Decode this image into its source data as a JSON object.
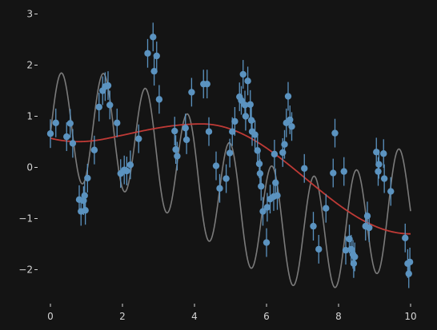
{
  "chart_data": {
    "type": "scatter",
    "title": "",
    "xlabel": "",
    "ylabel": "",
    "xlim": [
      -0.5,
      10.3
    ],
    "ylim": [
      -2.65,
      3.2
    ],
    "x_ticks": [
      0,
      2,
      4,
      6,
      8,
      10
    ],
    "y_ticks": [
      -2,
      -1,
      0,
      1,
      2,
      3
    ],
    "grid": false,
    "legend": "none",
    "colors": {
      "background": "#141414",
      "points": "#5b93c0",
      "true_curve": "#7b7b7b",
      "fit_curve": "#bf3a36",
      "ticks": "#d4d4d4"
    },
    "points": [
      {
        "x": 0.0,
        "y": 0.66,
        "err": 0.28
      },
      {
        "x": 0.15,
        "y": 0.87,
        "err": 0.28
      },
      {
        "x": 0.45,
        "y": 0.6,
        "err": 0.28
      },
      {
        "x": 0.55,
        "y": 0.86,
        "err": 0.28
      },
      {
        "x": 0.62,
        "y": 0.47,
        "err": 0.28
      },
      {
        "x": 0.8,
        "y": -0.63,
        "err": 0.28
      },
      {
        "x": 0.85,
        "y": -0.86,
        "err": 0.28
      },
      {
        "x": 0.92,
        "y": -0.65,
        "err": 0.28
      },
      {
        "x": 0.95,
        "y": -0.55,
        "err": 0.28
      },
      {
        "x": 0.97,
        "y": -0.84,
        "err": 0.28
      },
      {
        "x": 1.03,
        "y": -0.21,
        "err": 0.28
      },
      {
        "x": 1.22,
        "y": 0.34,
        "err": 0.28
      },
      {
        "x": 1.35,
        "y": 1.18,
        "err": 0.28
      },
      {
        "x": 1.45,
        "y": 1.5,
        "err": 0.28
      },
      {
        "x": 1.52,
        "y": 1.58,
        "err": 0.28
      },
      {
        "x": 1.6,
        "y": 1.6,
        "err": 0.28
      },
      {
        "x": 1.65,
        "y": 1.22,
        "err": 0.28
      },
      {
        "x": 1.85,
        "y": 0.87,
        "err": 0.28
      },
      {
        "x": 1.95,
        "y": -0.12,
        "err": 0.28
      },
      {
        "x": 2.05,
        "y": -0.05,
        "err": 0.28
      },
      {
        "x": 2.12,
        "y": -0.07,
        "err": 0.28
      },
      {
        "x": 2.22,
        "y": 0.05,
        "err": 0.28
      },
      {
        "x": 2.45,
        "y": 0.56,
        "err": 0.28
      },
      {
        "x": 2.7,
        "y": 2.23,
        "err": 0.28
      },
      {
        "x": 2.85,
        "y": 2.55,
        "err": 0.28
      },
      {
        "x": 2.88,
        "y": 1.88,
        "err": 0.28
      },
      {
        "x": 2.95,
        "y": 2.18,
        "err": 0.28
      },
      {
        "x": 3.02,
        "y": 1.33,
        "err": 0.28
      },
      {
        "x": 3.45,
        "y": 0.71,
        "err": 0.28
      },
      {
        "x": 3.48,
        "y": 0.35,
        "err": 0.28
      },
      {
        "x": 3.52,
        "y": 0.22,
        "err": 0.28
      },
      {
        "x": 3.75,
        "y": 0.77,
        "err": 0.28
      },
      {
        "x": 3.78,
        "y": 0.54,
        "err": 0.28
      },
      {
        "x": 3.92,
        "y": 1.47,
        "err": 0.28
      },
      {
        "x": 4.25,
        "y": 1.63,
        "err": 0.28
      },
      {
        "x": 4.35,
        "y": 1.63,
        "err": 0.28
      },
      {
        "x": 4.4,
        "y": 0.7,
        "err": 0.28
      },
      {
        "x": 4.6,
        "y": 0.03,
        "err": 0.28
      },
      {
        "x": 4.7,
        "y": -0.41,
        "err": 0.28
      },
      {
        "x": 4.88,
        "y": -0.22,
        "err": 0.28
      },
      {
        "x": 4.98,
        "y": 0.28,
        "err": 0.28
      },
      {
        "x": 5.05,
        "y": 0.7,
        "err": 0.28
      },
      {
        "x": 5.12,
        "y": 0.9,
        "err": 0.28
      },
      {
        "x": 5.25,
        "y": 1.38,
        "err": 0.28
      },
      {
        "x": 5.3,
        "y": 1.31,
        "err": 0.28
      },
      {
        "x": 5.35,
        "y": 1.82,
        "err": 0.28
      },
      {
        "x": 5.4,
        "y": 1.22,
        "err": 0.28
      },
      {
        "x": 5.42,
        "y": 1.0,
        "err": 0.28
      },
      {
        "x": 5.48,
        "y": 1.69,
        "err": 0.28
      },
      {
        "x": 5.55,
        "y": 1.23,
        "err": 0.28
      },
      {
        "x": 5.58,
        "y": 0.92,
        "err": 0.28
      },
      {
        "x": 5.6,
        "y": 0.7,
        "err": 0.28
      },
      {
        "x": 5.68,
        "y": 0.64,
        "err": 0.28
      },
      {
        "x": 5.75,
        "y": 0.33,
        "err": 0.28
      },
      {
        "x": 5.8,
        "y": 0.07,
        "err": 0.28
      },
      {
        "x": 5.82,
        "y": -0.12,
        "err": 0.28
      },
      {
        "x": 5.85,
        "y": -0.37,
        "err": 0.28
      },
      {
        "x": 5.9,
        "y": -0.86,
        "err": 0.28
      },
      {
        "x": 6.0,
        "y": -1.47,
        "err": 0.28
      },
      {
        "x": 6.02,
        "y": -0.78,
        "err": 0.28
      },
      {
        "x": 6.1,
        "y": -0.62,
        "err": 0.28
      },
      {
        "x": 6.2,
        "y": -0.57,
        "err": 0.28
      },
      {
        "x": 6.22,
        "y": 0.26,
        "err": 0.28
      },
      {
        "x": 6.25,
        "y": -0.3,
        "err": 0.28
      },
      {
        "x": 6.3,
        "y": -0.55,
        "err": 0.28
      },
      {
        "x": 6.45,
        "y": 0.29,
        "err": 0.28
      },
      {
        "x": 6.5,
        "y": 0.45,
        "err": 0.28
      },
      {
        "x": 6.55,
        "y": 0.87,
        "err": 0.28
      },
      {
        "x": 6.6,
        "y": 1.39,
        "err": 0.28
      },
      {
        "x": 6.65,
        "y": 0.93,
        "err": 0.28
      },
      {
        "x": 6.7,
        "y": 0.8,
        "err": 0.28
      },
      {
        "x": 7.05,
        "y": -0.02,
        "err": 0.28
      },
      {
        "x": 7.3,
        "y": -1.15,
        "err": 0.28
      },
      {
        "x": 7.45,
        "y": -1.6,
        "err": 0.28
      },
      {
        "x": 7.65,
        "y": -0.8,
        "err": 0.28
      },
      {
        "x": 7.85,
        "y": -0.11,
        "err": 0.28
      },
      {
        "x": 7.9,
        "y": 0.67,
        "err": 0.28
      },
      {
        "x": 8.15,
        "y": -0.08,
        "err": 0.28
      },
      {
        "x": 8.2,
        "y": -1.62,
        "err": 0.28
      },
      {
        "x": 8.3,
        "y": -1.4,
        "err": 0.28
      },
      {
        "x": 8.35,
        "y": -1.6,
        "err": 0.28
      },
      {
        "x": 8.4,
        "y": -1.7,
        "err": 0.28
      },
      {
        "x": 8.42,
        "y": -1.88,
        "err": 0.28
      },
      {
        "x": 8.45,
        "y": -1.75,
        "err": 0.28
      },
      {
        "x": 8.75,
        "y": -1.15,
        "err": 0.28
      },
      {
        "x": 8.8,
        "y": -0.95,
        "err": 0.28
      },
      {
        "x": 8.85,
        "y": -1.18,
        "err": 0.28
      },
      {
        "x": 9.05,
        "y": 0.3,
        "err": 0.28
      },
      {
        "x": 9.1,
        "y": -0.08,
        "err": 0.28
      },
      {
        "x": 9.12,
        "y": 0.06,
        "err": 0.28
      },
      {
        "x": 9.25,
        "y": 0.27,
        "err": 0.28
      },
      {
        "x": 9.27,
        "y": -0.22,
        "err": 0.28
      },
      {
        "x": 9.45,
        "y": -0.47,
        "err": 0.28
      },
      {
        "x": 9.85,
        "y": -1.38,
        "err": 0.28
      },
      {
        "x": 9.92,
        "y": -1.88,
        "err": 0.28
      },
      {
        "x": 9.95,
        "y": -2.08,
        "err": 0.28
      },
      {
        "x": 9.98,
        "y": -1.85,
        "err": 0.28
      }
    ]
  }
}
